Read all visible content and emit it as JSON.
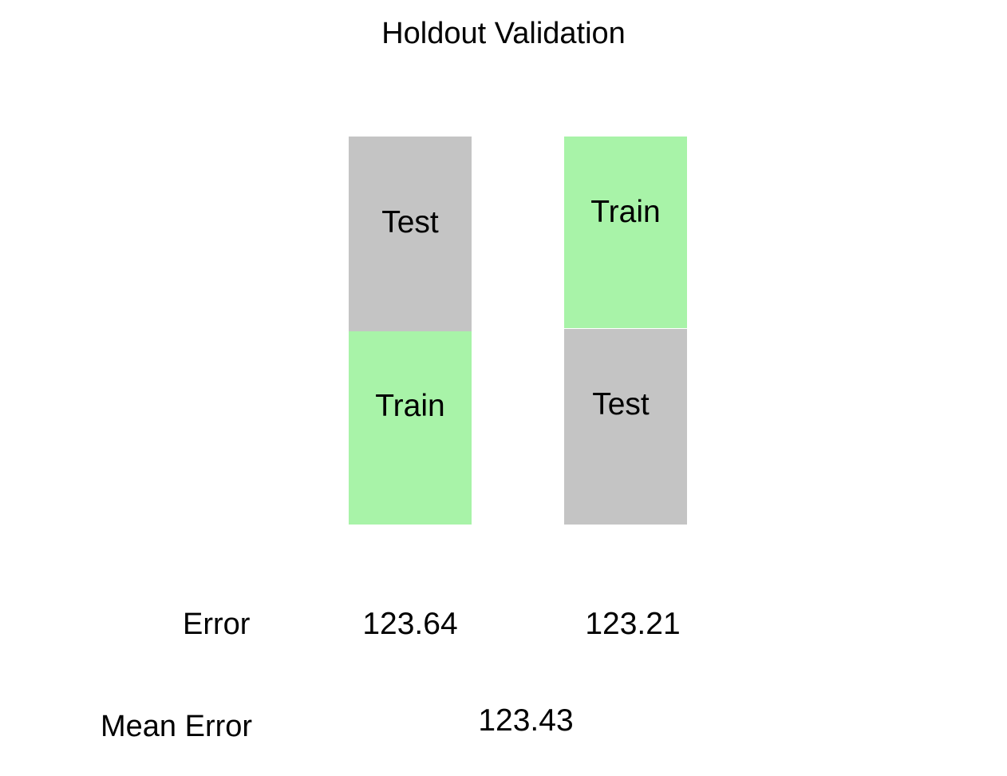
{
  "title": "Holdout Validation",
  "colors": {
    "train": "#a8f3a8",
    "test": "#c4c4c4"
  },
  "folds": [
    {
      "blocks": [
        {
          "label": "Test",
          "role": "test"
        },
        {
          "label": "Train",
          "role": "train"
        }
      ],
      "error": "123.64"
    },
    {
      "blocks": [
        {
          "label": "Train",
          "role": "train"
        },
        {
          "label": "Test",
          "role": "test"
        }
      ],
      "error": "123.21"
    }
  ],
  "error_label": "Error",
  "mean_error_label": "Mean Error",
  "mean_error": "123.43"
}
